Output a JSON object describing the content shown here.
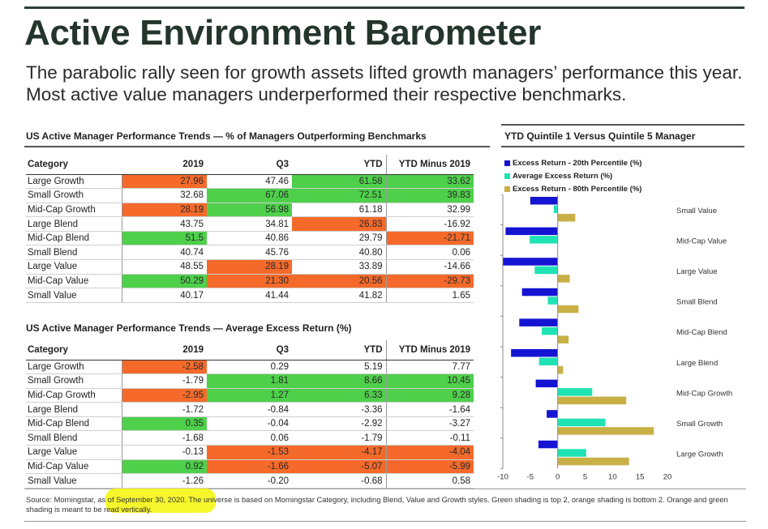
{
  "header": {
    "title": "Active Environment Barometer",
    "subtitle": "The parabolic rally seen for growth assets lifted growth managers’ performance this year. Most active value managers underperformed their respective benchmarks."
  },
  "table1": {
    "title": "US Active Manager Performance Trends — % of Managers Outperforming Benchmarks",
    "columns": [
      "Category",
      "2019",
      "Q3",
      "YTD",
      "YTD Minus 2019"
    ],
    "rows": [
      {
        "cells": [
          "Large Growth",
          "27.96",
          "47.46",
          "61.58",
          "33.62"
        ],
        "hl": [
          "",
          "o",
          "",
          "g",
          "g"
        ]
      },
      {
        "cells": [
          "Small Growth",
          "32.68",
          "67.06",
          "72.51",
          "39.83"
        ],
        "hl": [
          "",
          "",
          "g",
          "g",
          "g"
        ]
      },
      {
        "cells": [
          "Mid-Cap Growth",
          "28.19",
          "56.98",
          "61.18",
          "32.99"
        ],
        "hl": [
          "",
          "o",
          "g",
          "",
          ""
        ]
      },
      {
        "cells": [
          "Large Blend",
          "43.75",
          "34.81",
          "26.83",
          "-16.92"
        ],
        "hl": [
          "",
          "",
          "",
          "o",
          ""
        ]
      },
      {
        "cells": [
          "Mid-Cap Blend",
          "51.5",
          "40.86",
          "29.79",
          "-21.71"
        ],
        "hl": [
          "",
          "g",
          "",
          "",
          "o"
        ]
      },
      {
        "cells": [
          "Small Blend",
          "40.74",
          "45.76",
          "40.80",
          "0.06"
        ],
        "hl": [
          "",
          "",
          "",
          "",
          ""
        ]
      },
      {
        "cells": [
          "Large Value",
          "48.55",
          "28.19",
          "33.89",
          "-14.66"
        ],
        "hl": [
          "",
          "",
          "o",
          "",
          ""
        ]
      },
      {
        "cells": [
          "Mid-Cap Value",
          "50.29",
          "21.30",
          "20.56",
          "-29.73"
        ],
        "hl": [
          "",
          "g",
          "o",
          "o",
          "o"
        ]
      },
      {
        "cells": [
          "Small Value",
          "40.17",
          "41.44",
          "41.82",
          "1.65"
        ],
        "hl": [
          "",
          "",
          "",
          "",
          ""
        ]
      }
    ]
  },
  "table2": {
    "title": "US Active Manager Performance Trends — Average Excess Return (%)",
    "columns": [
      "Category",
      "2019",
      "Q3",
      "YTD",
      "YTD Minus 2019"
    ],
    "rows": [
      {
        "cells": [
          "Large Growth",
          "-2.58",
          "0.29",
          "5.19",
          "7.77"
        ],
        "hl": [
          "",
          "o",
          "",
          "",
          ""
        ]
      },
      {
        "cells": [
          "Small Growth",
          "-1.79",
          "1.81",
          "8.66",
          "10.45"
        ],
        "hl": [
          "",
          "",
          "g",
          "g",
          "g"
        ]
      },
      {
        "cells": [
          "Mid-Cap Growth",
          "-2.95",
          "1.27",
          "6.33",
          "9.28"
        ],
        "hl": [
          "",
          "o",
          "g",
          "g",
          "g"
        ]
      },
      {
        "cells": [
          "Large Blend",
          "-1.72",
          "-0.84",
          "-3.36",
          "-1.64"
        ],
        "hl": [
          "",
          "",
          "",
          "",
          ""
        ]
      },
      {
        "cells": [
          "Mid-Cap Blend",
          "0.35",
          "-0.04",
          "-2.92",
          "-3.27"
        ],
        "hl": [
          "",
          "g",
          "",
          "",
          ""
        ]
      },
      {
        "cells": [
          "Small Blend",
          "-1.68",
          "0.06",
          "-1.79",
          "-0.11"
        ],
        "hl": [
          "",
          "",
          "",
          "",
          ""
        ]
      },
      {
        "cells": [
          "Large Value",
          "-0.13",
          "-1.53",
          "-4.17",
          "-4.04"
        ],
        "hl": [
          "",
          "",
          "o",
          "o",
          "o"
        ]
      },
      {
        "cells": [
          "Mid-Cap Value",
          "0.92",
          "-1.66",
          "-5.07",
          "-5.99"
        ],
        "hl": [
          "",
          "g",
          "o",
          "o",
          "o"
        ]
      },
      {
        "cells": [
          "Small Value",
          "-1.26",
          "-0.20",
          "-0.68",
          "0.58"
        ],
        "hl": [
          "",
          "",
          "",
          "",
          ""
        ]
      }
    ]
  },
  "colors": {
    "green_highlight": "#4ed04a",
    "orange_highlight": "#f56a2a",
    "series_20th": "#1414d2",
    "series_avg": "#1fe3b5",
    "series_80th": "#c8b046"
  },
  "chart_data": {
    "type": "bar",
    "orientation": "horizontal",
    "title": "YTD Quintile 1 Versus Quintile 5 Manager",
    "categories": [
      "Small Value",
      "Mid-Cap Value",
      "Large Value",
      "Small Blend",
      "Mid-Cap Blend",
      "Large Blend",
      "Mid-Cap Growth",
      "Small Growth",
      "Large Growth"
    ],
    "series": [
      {
        "name": "Excess Return - 20th Percentile (%)",
        "values": [
          -5,
          -9.5,
          -10,
          -6.5,
          -7,
          -8.5,
          -4,
          -2,
          -3.5
        ]
      },
      {
        "name": "Average Excess Return (%)",
        "values": [
          -0.7,
          -5.1,
          -4.2,
          -1.8,
          -2.9,
          -3.4,
          6.3,
          8.7,
          5.2
        ]
      },
      {
        "name": "Excess Return - 80th Percentile (%)",
        "values": [
          3.2,
          0,
          2.2,
          3.8,
          2,
          1,
          12.5,
          17.5,
          13
        ]
      }
    ],
    "xlim": [
      -10,
      20
    ],
    "xticks": [
      "-10",
      "-5",
      "0",
      "5",
      "10",
      "15",
      "20"
    ],
    "legend_position": "top-left"
  },
  "footer": {
    "source_prefix": "Source: Morningstar, ",
    "source_highlight": "as of September 30, 2020.",
    "source_rest": " The universe is based on Morningstar Category, including Blend, Value and Growth styles. Green shading is top 2, orange shading is bottom 2. Orange and green shading is meant to be read vertically."
  }
}
